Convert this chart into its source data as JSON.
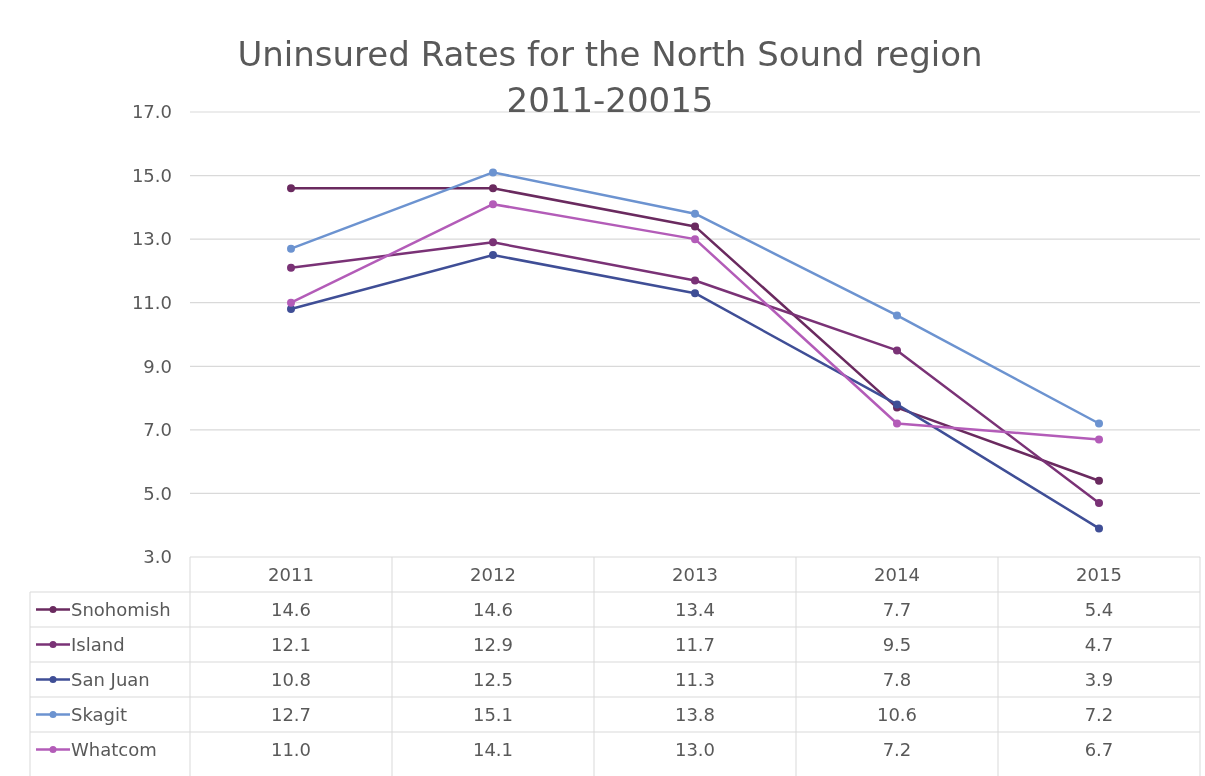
{
  "chart_data": {
    "type": "line",
    "title": "Uninsured Rates for the North Sound region\n2011-20015",
    "categories": [
      "2011",
      "2012",
      "2013",
      "2014",
      "2015"
    ],
    "series": [
      {
        "name": "Snohomish",
        "color": "#6a2a5f",
        "values": [
          14.6,
          14.6,
          13.4,
          7.7,
          5.4
        ],
        "value_labels": [
          "14.6",
          "14.6",
          "13.4",
          "7.7",
          "5.4"
        ]
      },
      {
        "name": "Island",
        "color": "#7a3276",
        "values": [
          12.1,
          12.9,
          11.7,
          9.5,
          4.7
        ],
        "value_labels": [
          "12.1",
          "12.9",
          "11.7",
          "9.5",
          "4.7"
        ]
      },
      {
        "name": "San Juan",
        "color": "#3f4e96",
        "values": [
          10.8,
          12.5,
          11.3,
          7.8,
          3.9
        ],
        "value_labels": [
          "10.8",
          "12.5",
          "11.3",
          "7.8",
          "3.9"
        ]
      },
      {
        "name": "Skagit",
        "color": "#6c93d0",
        "values": [
          12.7,
          15.1,
          13.8,
          10.6,
          7.2
        ],
        "value_labels": [
          "12.7",
          "15.1",
          "13.8",
          "10.6",
          "7.2"
        ]
      },
      {
        "name": "Whatcom",
        "color": "#b35cb8",
        "values": [
          11.0,
          14.1,
          13.0,
          7.2,
          6.7
        ],
        "value_labels": [
          "11.0",
          "14.1",
          "13.0",
          "7.2",
          "6.7"
        ]
      }
    ],
    "ylim": [
      3,
      17
    ],
    "yticks": [
      {
        "value": 3,
        "label": "3.0"
      },
      {
        "value": 5,
        "label": "5.0"
      },
      {
        "value": 7,
        "label": "7.0"
      },
      {
        "value": 9,
        "label": "9.0"
      },
      {
        "value": 11,
        "label": "11.0"
      },
      {
        "value": 13,
        "label": "13.0"
      },
      {
        "value": 15,
        "label": "15.0"
      },
      {
        "value": 17,
        "label": "17.0"
      }
    ],
    "grid": "y",
    "marker": "circle",
    "line_style": "solid",
    "legend": "bottom"
  }
}
